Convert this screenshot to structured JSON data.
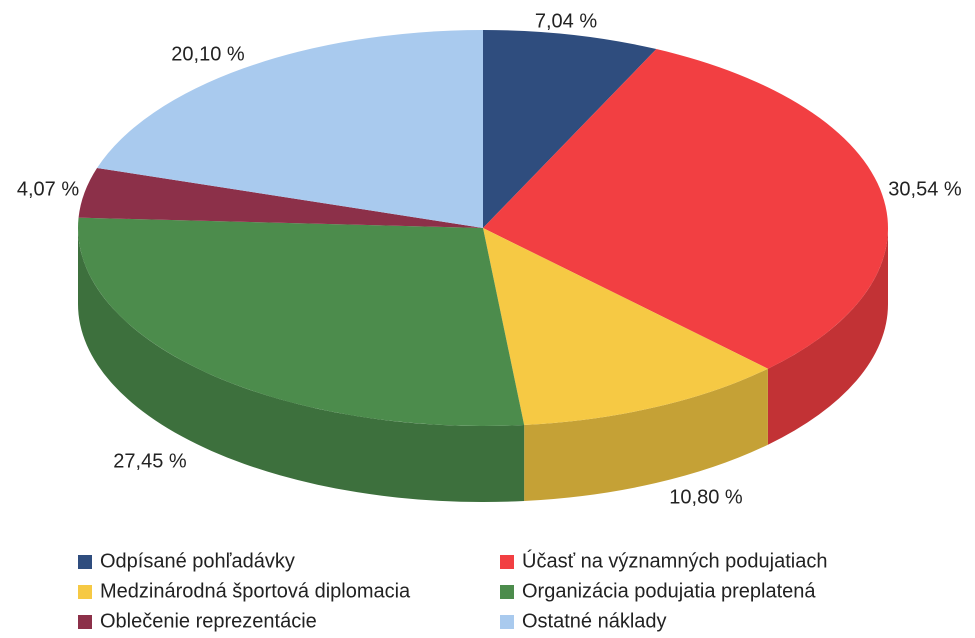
{
  "chart_data": {
    "type": "pie",
    "categories": [
      "Odpísané pohľadávky",
      "Účasť na významných podujatiach",
      "Medzinárodná športová diplomacia",
      "Organizácia podujatia preplatená",
      "Oblečenie reprezentácie",
      "Ostatné náklady"
    ],
    "values": [
      7.04,
      30.54,
      10.8,
      27.45,
      4.07,
      20.1
    ],
    "value_labels": [
      "7,04 %",
      "30,54 %",
      "10,80 %",
      "27,45 %",
      "4,07 %",
      "20,10 %"
    ],
    "colors": [
      "#2f4d7e",
      "#f23f42",
      "#f6c944",
      "#4c8c4c",
      "#8c3049",
      "#a9caee"
    ],
    "legend": "bottom"
  }
}
